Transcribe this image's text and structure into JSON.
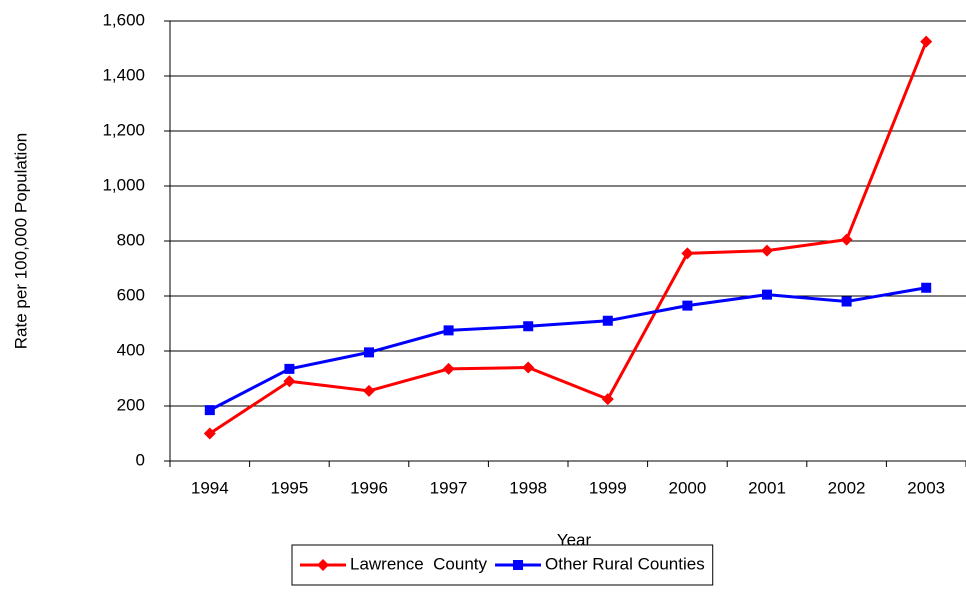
{
  "chart_data": {
    "type": "line",
    "x_label": "Year",
    "y_label": "Rate per 100,000 Population",
    "categories": [
      "1994",
      "1995",
      "1996",
      "1997",
      "1998",
      "1999",
      "2000",
      "2001",
      "2002",
      "2003"
    ],
    "series": [
      {
        "name": "Lawrence  County",
        "color": "#ff0000",
        "marker": "diamond",
        "values": [
          100,
          290,
          255,
          335,
          340,
          225,
          755,
          765,
          805,
          1525
        ]
      },
      {
        "name": "Other Rural Counties",
        "color": "#0000ff",
        "marker": "square",
        "values": [
          185,
          335,
          395,
          475,
          490,
          510,
          565,
          605,
          580,
          630
        ]
      }
    ],
    "ylim": [
      0,
      1600
    ],
    "yticks": [
      0,
      200,
      400,
      600,
      800,
      {
        "value": 1000,
        "label": "1,000"
      },
      {
        "value": 1200,
        "label": "1,200"
      },
      {
        "value": 1400,
        "label": "1,400"
      },
      {
        "value": 1600,
        "label": "1,600"
      }
    ],
    "grid": true,
    "legend": "bottom"
  }
}
